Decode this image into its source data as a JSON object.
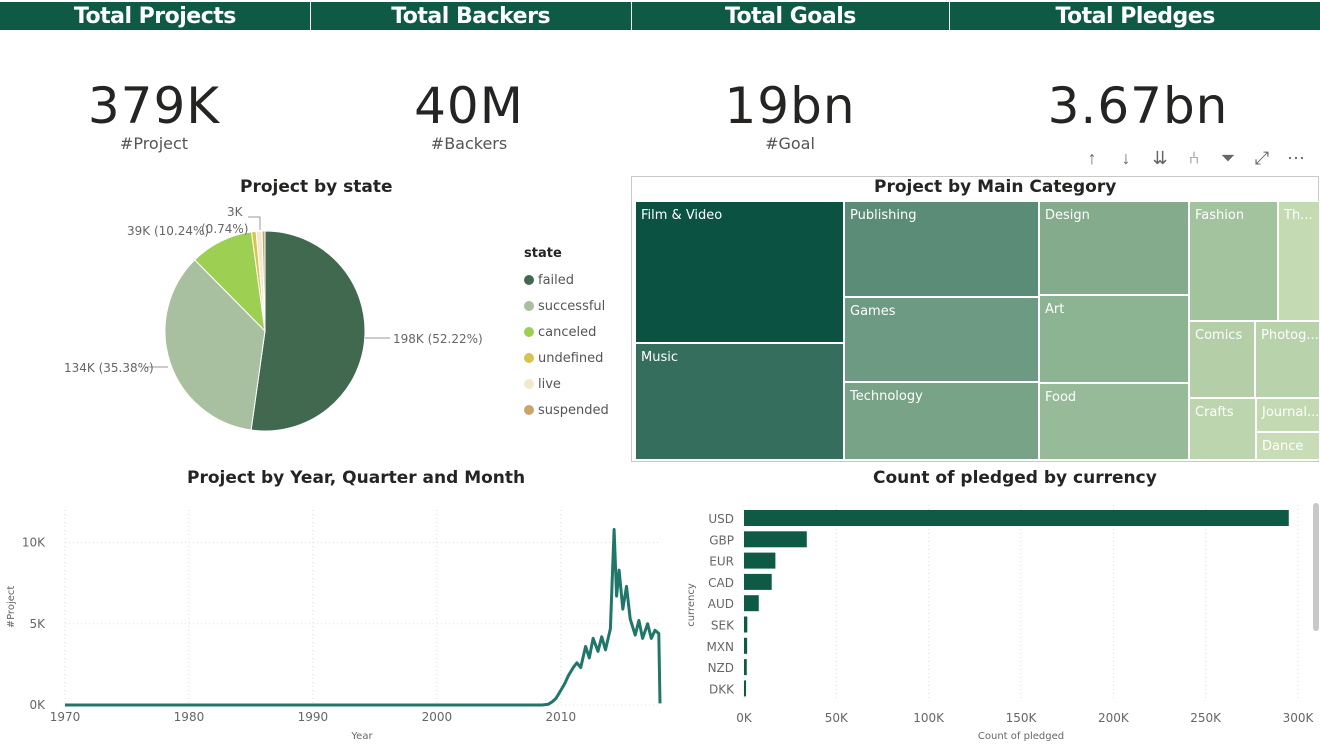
{
  "header": [
    "Total Projects",
    "Total Backers",
    "Total Goals",
    "Total Pledges"
  ],
  "kpis": [
    {
      "value": "379K",
      "label": "#Project"
    },
    {
      "value": "40M",
      "label": "#Backers"
    },
    {
      "value": "19bn",
      "label": "#Goal"
    },
    {
      "value": "3.67bn",
      "label": ""
    }
  ],
  "pie": {
    "title": "Project by state",
    "legend_title": "state",
    "slices": [
      {
        "name": "failed",
        "value": 52.22,
        "label": "198K (52.22%)",
        "color": "#41694f"
      },
      {
        "name": "successful",
        "value": 35.38,
        "label": "134K (35.38%)",
        "color": "#a8bfa0"
      },
      {
        "name": "canceled",
        "value": 10.24,
        "label": "39K (10.24%)",
        "color": "#9ccf52"
      },
      {
        "name": "undefined",
        "value": 0.74,
        "label": "3K (0.74%)",
        "color": "#d8c44c"
      },
      {
        "name": "live",
        "value": 0.95,
        "label": "",
        "color": "#f3e8cf"
      },
      {
        "name": "suspended",
        "value": 0.47,
        "label": "",
        "color": "#c9a56b"
      }
    ],
    "label_3k": "3K",
    "label_074": "(0.74%)"
  },
  "treemap": {
    "title": "Project by Main Category",
    "cells": [
      "Film & Video",
      "Music",
      "Publishing",
      "Games",
      "Technology",
      "Design",
      "Art",
      "Food",
      "Fashion",
      "Th...",
      "Comics",
      "Photog...",
      "Crafts",
      "Journal...",
      "Dance"
    ]
  },
  "toolbar": [
    "↑",
    "↓",
    "⇊",
    "⑃",
    "⏷",
    "⤢",
    "⋯"
  ],
  "line_chart": {
    "title": "Project by Year, Quarter and Month",
    "xlabel": "Year",
    "ylabel": "#Project",
    "xticks": [
      "1970",
      "1980",
      "1990",
      "2000",
      "2010"
    ],
    "yticks": [
      "0K",
      "5K",
      "10K"
    ],
    "color": "#21766a"
  },
  "bar_chart": {
    "title": "Count of pledged by currency",
    "xlabel": "Count of pledged",
    "ylabel": "currency",
    "xticks": [
      "0K",
      "50K",
      "100K",
      "150K",
      "200K",
      "250K",
      "300K"
    ],
    "color": "#0e5a45"
  },
  "chart_data": [
    {
      "type": "pie",
      "title": "Project by state",
      "legend_title": "state",
      "categories": [
        "failed",
        "successful",
        "canceled",
        "undefined",
        "live",
        "suspended"
      ],
      "values": [
        198000,
        134000,
        39000,
        3000,
        3600,
        1800
      ],
      "labels": [
        "198K (52.22%)",
        "134K (35.38%)",
        "39K (10.24%)",
        "3K (0.74%)",
        "",
        ""
      ]
    },
    {
      "type": "treemap",
      "title": "Project by Main Category",
      "categories": [
        "Film & Video",
        "Music",
        "Publishing",
        "Games",
        "Technology",
        "Design",
        "Art",
        "Food",
        "Fashion",
        "Th...",
        "Comics",
        "Photog...",
        "Crafts",
        "Journal...",
        "Dance"
      ]
    },
    {
      "type": "line",
      "title": "Project by Year, Quarter and Month",
      "xlabel": "Year",
      "ylabel": "#Project",
      "xlim": [
        1970,
        2018
      ],
      "ylim": [
        0,
        12000
      ],
      "x": [
        1970,
        2008.5,
        2009.0,
        2009.3,
        2009.6,
        2010.0,
        2010.3,
        2010.6,
        2011.0,
        2011.3,
        2011.6,
        2012.0,
        2012.3,
        2012.6,
        2013.0,
        2013.3,
        2013.6,
        2014.0,
        2014.3,
        2014.5,
        2014.7,
        2015.0,
        2015.3,
        2015.6,
        2016.0,
        2016.3,
        2016.6,
        2017.0,
        2017.3,
        2017.6,
        2017.9,
        2018.0
      ],
      "y": [
        0,
        0,
        50,
        200,
        400,
        900,
        1300,
        1800,
        2300,
        2600,
        2300,
        3600,
        2900,
        4100,
        3300,
        4200,
        3400,
        4700,
        10800,
        6700,
        8300,
        5900,
        7300,
        5300,
        4300,
        5200,
        4100,
        5000,
        4100,
        4600,
        4400,
        100
      ]
    },
    {
      "type": "bar",
      "orientation": "horizontal",
      "title": "Count of pledged by currency",
      "xlabel": "Count of pledged",
      "ylabel": "currency",
      "categories": [
        "USD",
        "GBP",
        "EUR",
        "CAD",
        "AUD",
        "SEK",
        "MXN",
        "NZD",
        "DKK"
      ],
      "values": [
        295000,
        34000,
        17000,
        15000,
        8000,
        1800,
        1700,
        1500,
        1100
      ],
      "xlim": [
        0,
        300000
      ]
    }
  ]
}
